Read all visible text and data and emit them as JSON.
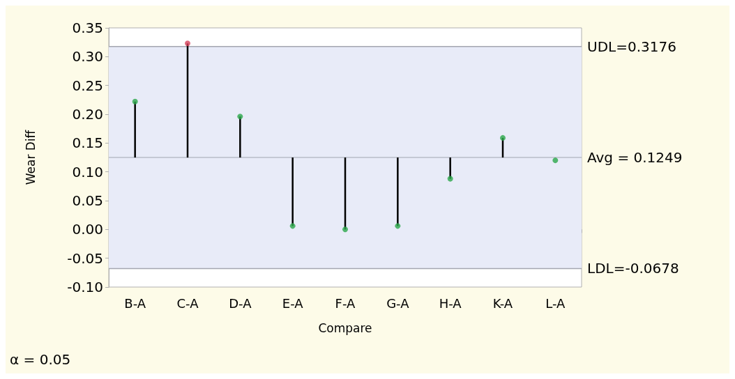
{
  "chart_data": {
    "type": "lollipop",
    "xlabel": "Compare",
    "ylabel": "Wear Diff",
    "categories": [
      "B-A",
      "C-A",
      "D-A",
      "E-A",
      "F-A",
      "G-A",
      "H-A",
      "K-A",
      "L-A"
    ],
    "values": [
      0.222,
      0.323,
      0.196,
      0.006,
      0.0,
      0.006,
      0.088,
      0.159,
      0.12
    ],
    "colors": [
      "#2aa84a",
      "#d6405a",
      "#2aa84a",
      "#2aa84a",
      "#2aa84a",
      "#2aa84a",
      "#2aa84a",
      "#2aa84a",
      "#2aa84a"
    ],
    "errors": [
      [
        0.1249,
        0.222
      ],
      [
        0.1249,
        0.323
      ],
      [
        0.1249,
        0.196
      ],
      [
        0.006,
        0.1249
      ],
      [
        0.0,
        0.1249
      ],
      [
        0.006,
        0.1249
      ],
      [
        0.088,
        0.1249
      ],
      [
        0.1249,
        0.159
      ],
      null
    ],
    "ylim": [
      -0.1,
      0.35
    ],
    "yticks": [
      {
        "value": -0.1,
        "label": "-0.10"
      },
      {
        "value": -0.05,
        "label": "-0.05"
      },
      {
        "value": 0,
        "label": "0.00"
      },
      {
        "value": 0.05,
        "label": "0.05"
      },
      {
        "value": 0.1,
        "label": "0.10"
      },
      {
        "value": 0.15,
        "label": "0.15"
      },
      {
        "value": 0.2,
        "label": "0.20"
      },
      {
        "value": 0.25,
        "label": "0.25"
      },
      {
        "value": 0.3,
        "label": "0.30"
      },
      {
        "value": 0.35,
        "label": "0.35"
      }
    ],
    "ref_lines": [
      {
        "axis": "y",
        "value": 0.3176,
        "label": "UDL=0.3176",
        "color": "#a4a6b0"
      },
      {
        "axis": "y",
        "value": 0.1249,
        "label": "Avg = 0.1249",
        "color": "#b8bcc8"
      },
      {
        "axis": "y",
        "value": -0.0678,
        "label": "LDL=-0.0678",
        "color": "#a4a6b0"
      }
    ],
    "bands": [
      {
        "axis": "y",
        "from": -0.0678,
        "to": 0.3176,
        "color": "#e8ebf8"
      }
    ],
    "marker": "circle",
    "grid": false,
    "annotations": [
      "α = 0.05"
    ]
  }
}
